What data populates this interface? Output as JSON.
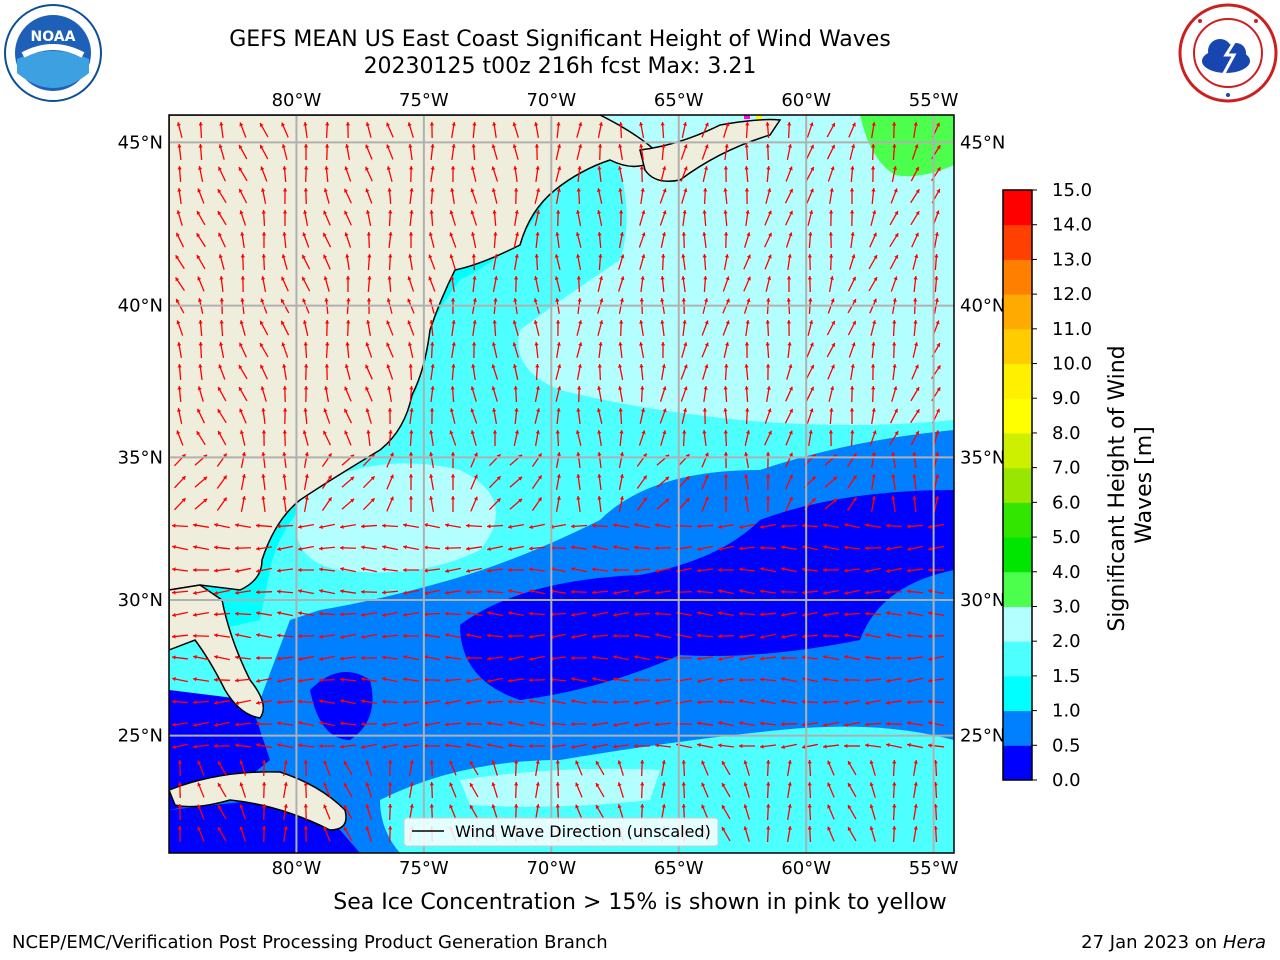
{
  "titles": {
    "line1": "GEFS MEAN US East Coast Significant Height of Wind Waves",
    "line2": "20230125 t00z 216h fcst   Max: 3.21"
  },
  "footer": {
    "left": "NCEP/EMC/Verification Post Processing Product Generation Branch",
    "right_date": "27 Jan 2023 on ",
    "right_machine": "Hera"
  },
  "ice_note": "Sea Ice Concentration > 15% is shown in pink to yellow",
  "legend_label": "Wind Wave Direction (unscaled)",
  "logos": {
    "left": {
      "text": "NOAA",
      "icon": "noaa-logo-icon"
    },
    "right": {
      "icon": "nws-logo-icon"
    }
  },
  "chart_data": {
    "type": "heatmap",
    "map_extent": {
      "lon": [
        -85,
        -54.2
      ],
      "lat": [
        20.5,
        45.8
      ]
    },
    "lon_ticks": [
      {
        "lon": -80,
        "label": "80°W"
      },
      {
        "lon": -75,
        "label": "75°W"
      },
      {
        "lon": -70,
        "label": "70°W"
      },
      {
        "lon": -65,
        "label": "65°W"
      },
      {
        "lon": -60,
        "label": "60°W"
      },
      {
        "lon": -55,
        "label": "55°W"
      }
    ],
    "lat_ticks": [
      {
        "lat": 45,
        "label": "45°N"
      },
      {
        "lat": 40,
        "label": "40°N"
      },
      {
        "lat": 35,
        "label": "35°N"
      },
      {
        "lat": 30,
        "label": "30°N"
      },
      {
        "lat": 25,
        "label": "25°N"
      }
    ],
    "colorbar": {
      "label": "Significant Height of Wind Waves [m]",
      "label_lines": [
        "Significant Height of Wind",
        "Waves [m]"
      ],
      "levels": [
        0.0,
        0.5,
        1.0,
        1.5,
        2.0,
        3.0,
        4.0,
        5.0,
        6.0,
        7.0,
        8.0,
        9.0,
        10.0,
        11.0,
        12.0,
        13.0,
        14.0,
        15.0
      ],
      "tick_labels": [
        "0.0",
        "0.5",
        "1.0",
        "1.5",
        "2.0",
        "3.0",
        "4.0",
        "5.0",
        "6.0",
        "7.0",
        "8.0",
        "9.0",
        "10.0",
        "11.0",
        "12.0",
        "13.0",
        "14.0",
        "15.0"
      ],
      "colors": [
        "#0000ff",
        "#0080ff",
        "#00ffff",
        "#4dffff",
        "#b3ffff",
        "#4dff4d",
        "#00e600",
        "#33e600",
        "#99e600",
        "#ccf000",
        "#ffff00",
        "#fff000",
        "#ffcc00",
        "#ffaa00",
        "#ff8000",
        "#ff4000",
        "#ff0000"
      ]
    },
    "max_value": 3.21,
    "land_color": "#efeedd",
    "arrow_color": "#ff0000",
    "grid": true
  }
}
